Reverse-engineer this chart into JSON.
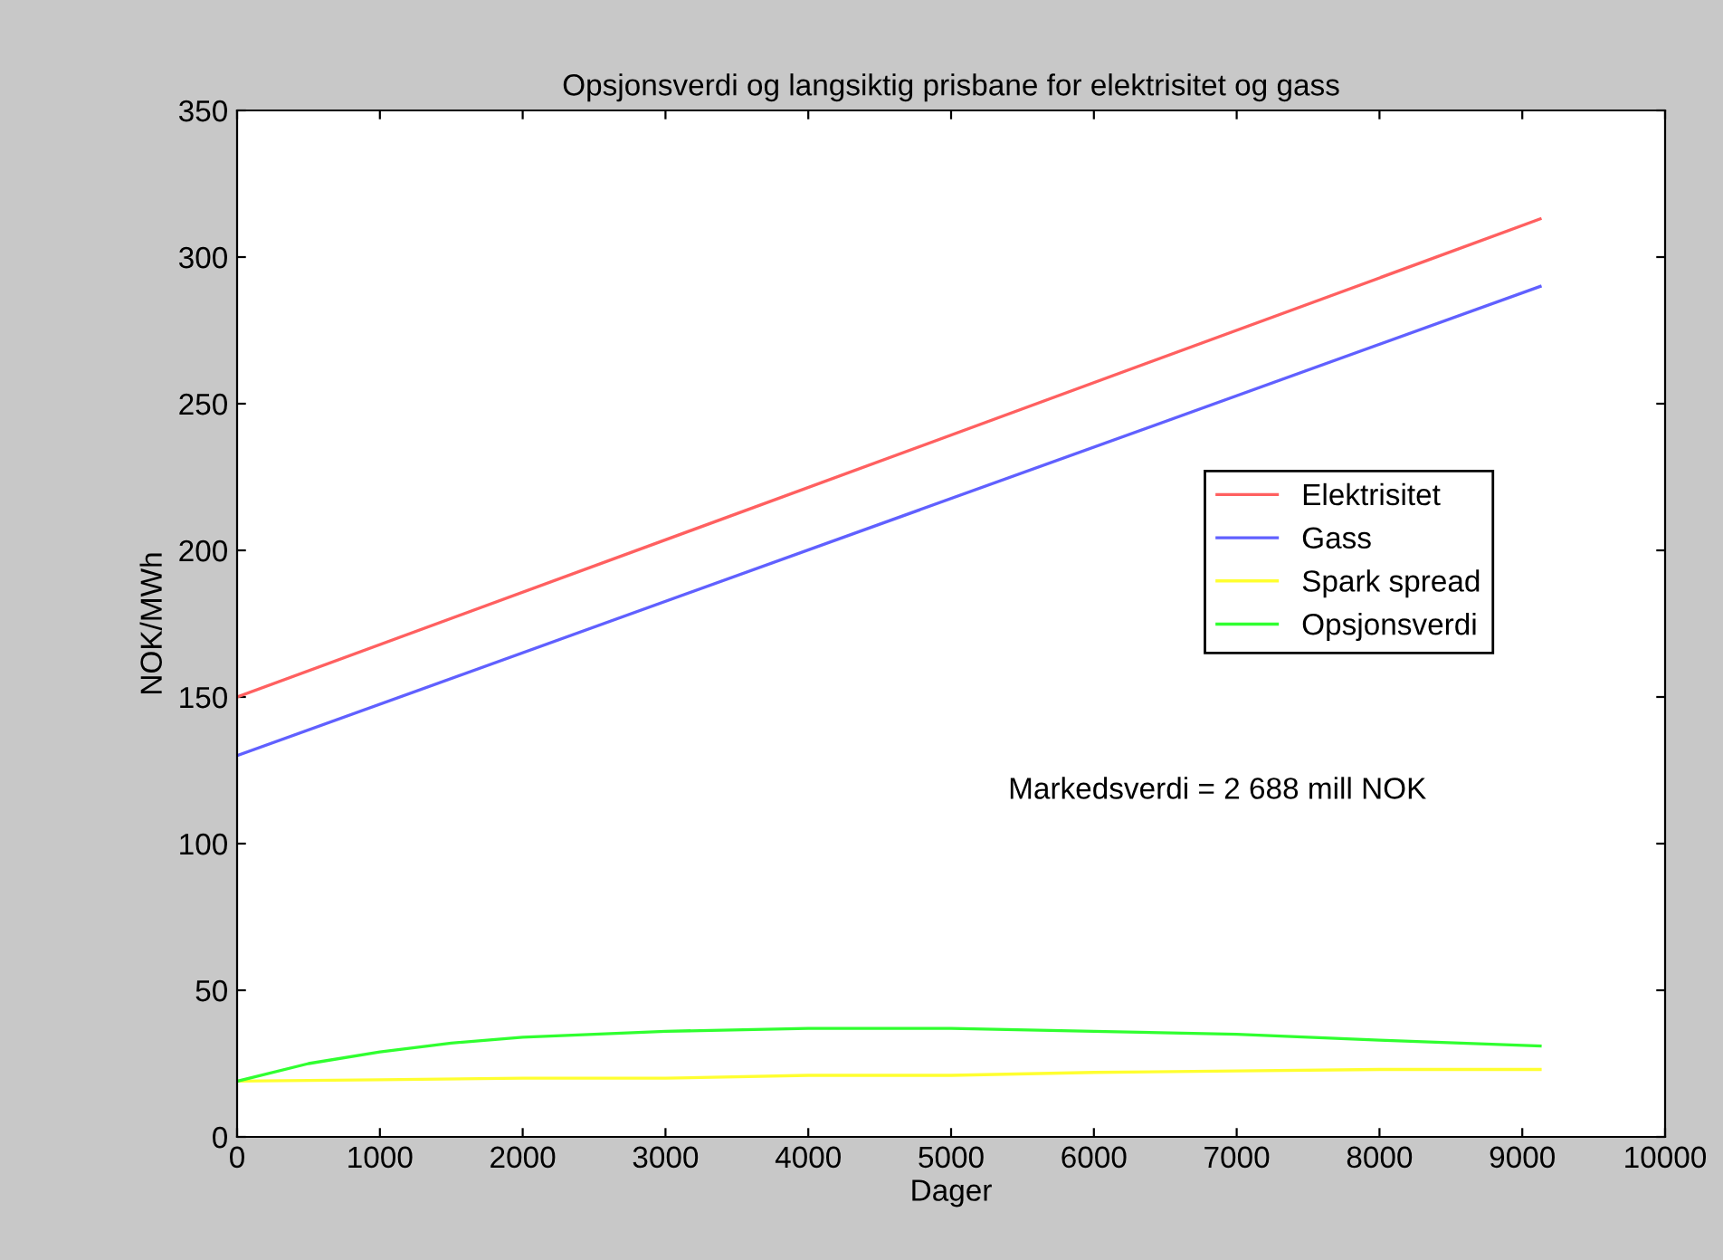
{
  "chart_data": {
    "type": "line",
    "title": "Opsjonsverdi og langsiktig prisbane for elektrisitet og gass",
    "xlabel": "Dager",
    "ylabel": "NOK/MWh",
    "series": [
      {
        "name": "Elektrisitet",
        "color": "#ff6060",
        "x": [
          0,
          9125
        ],
        "values": [
          150,
          313
        ]
      },
      {
        "name": "Gass",
        "color": "#6060ff",
        "x": [
          0,
          9125
        ],
        "values": [
          130,
          290
        ]
      },
      {
        "name": "Spark spread",
        "color": "#ffff30",
        "x": [
          0,
          1000,
          2000,
          3000,
          4000,
          5000,
          6000,
          7000,
          8000,
          9125
        ],
        "values": [
          19,
          19.5,
          20,
          20,
          21,
          21,
          22,
          22.5,
          23,
          23
        ]
      },
      {
        "name": "Opsjonsverdi",
        "color": "#30ff30",
        "x": [
          0,
          500,
          1000,
          1500,
          2000,
          3000,
          4000,
          5000,
          6000,
          7000,
          8000,
          9125
        ],
        "values": [
          19,
          25,
          29,
          32,
          34,
          36,
          37,
          37,
          36,
          35,
          33,
          31
        ]
      }
    ],
    "xlim": [
      0,
      10000
    ],
    "ylim": [
      0,
      350
    ],
    "xticks": [
      0,
      1000,
      2000,
      3000,
      4000,
      5000,
      6000,
      7000,
      8000,
      9000,
      10000
    ],
    "yticks": [
      0,
      50,
      100,
      150,
      200,
      250,
      300,
      350
    ],
    "annotations": [
      "Markedsverdi = 2 688 mill NOK"
    ],
    "legend": "right",
    "grid": false
  }
}
